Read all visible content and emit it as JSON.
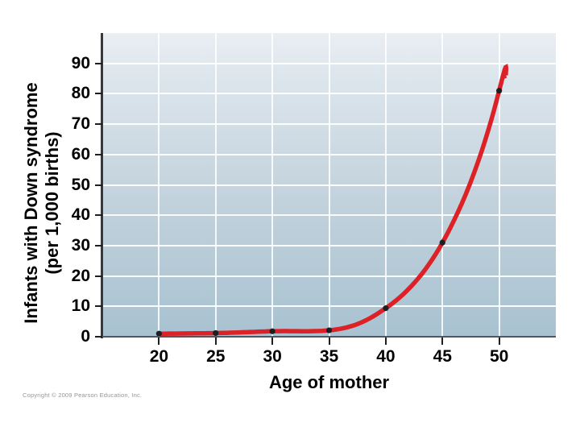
{
  "chart_data": {
    "type": "line",
    "title": "",
    "xlabel": "Age of mother",
    "ylabel_line1": "Infants with Down syndrome",
    "ylabel_line2": "(per 1,000 births)",
    "xlim": [
      15,
      55
    ],
    "ylim": [
      0,
      100
    ],
    "xticks": [
      20,
      25,
      30,
      35,
      40,
      45,
      50
    ],
    "yticks": [
      0,
      10,
      20,
      30,
      40,
      50,
      60,
      70,
      80,
      90
    ],
    "grid": true,
    "legend": "none",
    "series": [
      {
        "name": "Down syndrome incidence per 1,000 births",
        "color": "#dc2127",
        "marker": "dot",
        "marker_color": "#1c2024",
        "points": [
          {
            "x": 20,
            "y": 1.0
          },
          {
            "x": 25,
            "y": 1.2
          },
          {
            "x": 30,
            "y": 1.8
          },
          {
            "x": 35,
            "y": 2.1
          },
          {
            "x": 40,
            "y": 9.4
          },
          {
            "x": 45,
            "y": 31
          },
          {
            "x": 50,
            "y": 81
          }
        ],
        "curve_end": {
          "x": 50.6,
          "y": 86
        }
      }
    ]
  },
  "footer": {
    "copyright": "Copyright © 2009 Pearson Education, Inc."
  },
  "colors": {
    "plot_bg_top": "#e9eef3",
    "plot_bg_bottom": "#a8c2d1",
    "gridline": "#ffffff",
    "axis_y": "#35393d",
    "axis_x": "#53565a",
    "tick": "#1d1f21",
    "curve": "#dc2127",
    "marker": "#1c2024",
    "text": "#000000",
    "copyright_text": "#949698"
  }
}
